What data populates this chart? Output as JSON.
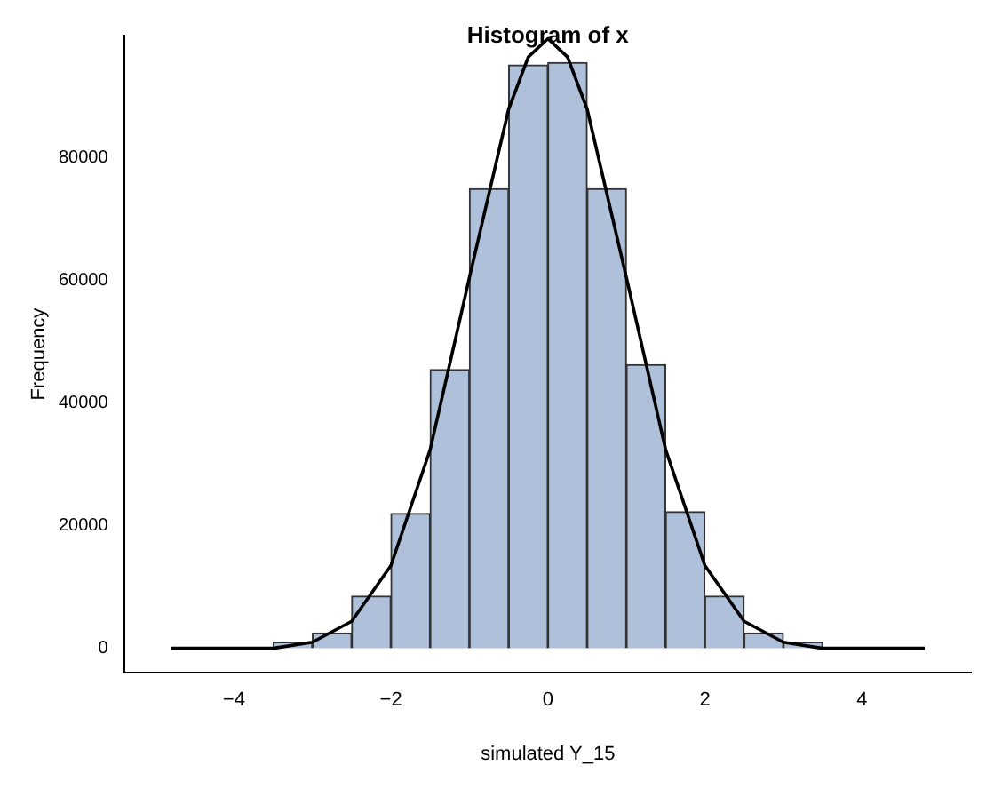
{
  "chart_data": {
    "type": "histogram",
    "title": "Histogram of x",
    "xlabel": "simulated Y_15",
    "ylabel": "Frequency",
    "bins": [
      -5,
      -4.5,
      -4,
      -3.5,
      -3,
      -2.5,
      -2,
      -1.5,
      -1,
      -0.5,
      0,
      0.5,
      1,
      1.5,
      2,
      2.5,
      3,
      3.5,
      4,
      4.5,
      5
    ],
    "values": [
      0,
      0,
      0,
      1000,
      2500,
      8500,
      22000,
      45500,
      75000,
      95200,
      95600,
      75000,
      46300,
      22300,
      8500,
      2500,
      1000,
      0,
      0,
      0
    ],
    "color": "#aec0da",
    "series": [
      {
        "type": "line",
        "color": "#000000",
        "x": [
          -4.8,
          -4.5,
          -4,
          -3.5,
          -3,
          -2.5,
          -2,
          -1.5,
          -1,
          -0.5,
          -0.25,
          0,
          0.25,
          0.5,
          1,
          1.5,
          2,
          2.5,
          3,
          3.5,
          4,
          4.5,
          4.8
        ],
        "values": [
          0,
          0,
          0,
          0,
          1000,
          4400,
          13500,
          32400,
          60500,
          88000,
          96500,
          99500,
          96500,
          88000,
          60500,
          32400,
          13500,
          4400,
          1000,
          0,
          0,
          0,
          0
        ]
      }
    ],
    "xlim": [
      -5.4,
      5.4
    ],
    "xticks": [
      {
        "value": -4,
        "label": "−4"
      },
      {
        "value": -2,
        "label": "−2"
      },
      0,
      2,
      4
    ],
    "ylim": [
      -4000,
      100000
    ],
    "yticks": [
      0,
      20000,
      40000,
      60000,
      80000
    ],
    "grid": false,
    "legend": false
  }
}
